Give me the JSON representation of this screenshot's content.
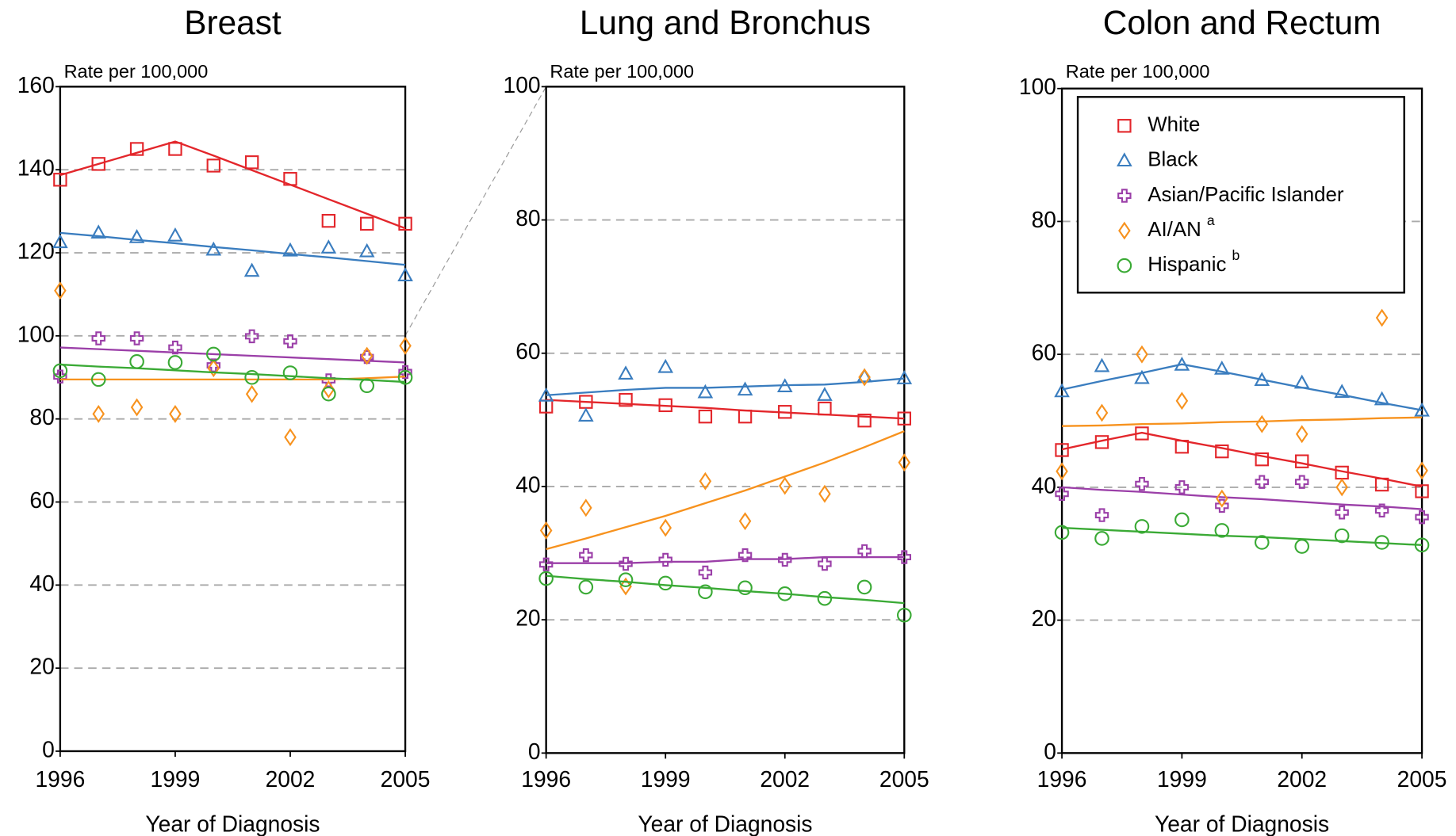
{
  "chart_data": [
    {
      "type": "line",
      "title": "Breast",
      "ylabel": "Rate per 100,000",
      "xlabel": "Year of Diagnosis",
      "x": [
        1996,
        1997,
        1998,
        1999,
        2000,
        2001,
        2002,
        2003,
        2004,
        2005
      ],
      "xlim": [
        1996,
        2005
      ],
      "xticks": [
        1996,
        1999,
        2002,
        2005
      ],
      "ylim": [
        0,
        160
      ],
      "yticks": [
        0,
        20,
        40,
        60,
        80,
        100,
        120,
        140,
        160
      ],
      "grid": true,
      "series": [
        {
          "color": "#e3262b",
          "marker": "square",
          "values": [
            137.6,
            141.4,
            145,
            145,
            141,
            141.8,
            137.8,
            127.7,
            127,
            127
          ],
          "fitted": [
            138.7,
            141.4,
            144.1,
            146.8,
            143.4,
            139.9,
            136.4,
            132.9,
            129.4,
            125.9
          ]
        },
        {
          "color": "#3a7dbf",
          "marker": "triangle",
          "values": [
            122.5,
            124.8,
            123.7,
            124.1,
            120.7,
            115.6,
            120.5,
            121.2,
            120.3,
            114.5
          ],
          "fitted": [
            124.8,
            124,
            123.1,
            122.3,
            121.4,
            120.6,
            119.7,
            118.9,
            118,
            117.1
          ]
        },
        {
          "color": "#9b3fa8",
          "marker": "plus",
          "values": [
            90.2,
            99.4,
            99.4,
            97.2,
            92.9,
            99.9,
            98.7,
            89.3,
            94.9,
            91.3
          ],
          "fitted": [
            97.2,
            96.8,
            96.4,
            96,
            95.6,
            95.2,
            94.8,
            94.4,
            94,
            93.6
          ]
        },
        {
          "color": "#f7921e",
          "marker": "diamond",
          "values": [
            110.9,
            81.2,
            82.8,
            81.2,
            92.2,
            86,
            75.6,
            87.1,
            95.2,
            97.6
          ],
          "fitted": [
            89.5,
            89.5,
            89.5,
            89.5,
            89.5,
            89.5,
            89.5,
            89.5,
            89.8,
            90.2
          ]
        },
        {
          "color": "#3aaa35",
          "marker": "circle",
          "values": [
            91.6,
            89.5,
            93.8,
            93.6,
            95.6,
            90,
            91.1,
            86,
            88,
            90
          ],
          "fitted": [
            93.1,
            92.6,
            92.2,
            91.7,
            91.2,
            90.8,
            90.3,
            89.8,
            89.4,
            88.9
          ]
        }
      ]
    },
    {
      "type": "line",
      "title": "Lung and Bronchus",
      "ylabel": "Rate per 100,000",
      "xlabel": "Year of Diagnosis",
      "x": [
        1996,
        1997,
        1998,
        1999,
        2000,
        2001,
        2002,
        2003,
        2004,
        2005
      ],
      "xlim": [
        1996,
        2005
      ],
      "xticks": [
        1996,
        1999,
        2002,
        2005
      ],
      "ylim": [
        0,
        100
      ],
      "yticks": [
        0,
        20,
        40,
        60,
        80,
        100
      ],
      "grid": true,
      "series": [
        {
          "color": "#e3262b",
          "marker": "square",
          "values": [
            52,
            52.7,
            53,
            52.2,
            50.5,
            50.5,
            51.2,
            51.7,
            49.9,
            50.2
          ],
          "fitted": [
            53,
            52.7,
            52.4,
            52.1,
            51.8,
            51.4,
            51.1,
            50.8,
            50.5,
            50.2
          ]
        },
        {
          "color": "#3a7dbf",
          "marker": "triangle",
          "values": [
            53.6,
            50.6,
            56.9,
            57.9,
            54.1,
            54.5,
            55,
            53.7,
            56.5,
            56.2
          ],
          "fitted": [
            53.7,
            54.1,
            54.5,
            54.8,
            54.8,
            55,
            55.2,
            55.3,
            55.7,
            56.2
          ]
        },
        {
          "color": "#9b3fa8",
          "marker": "plus",
          "values": [
            28.3,
            29.7,
            28.4,
            29,
            27.1,
            29.7,
            29,
            28.4,
            30.3,
            29.4
          ],
          "fitted": [
            28.5,
            28.5,
            28.5,
            28.7,
            28.7,
            29.1,
            29.1,
            29.4,
            29.4,
            29.4
          ]
        },
        {
          "color": "#f7921e",
          "marker": "diamond",
          "values": [
            33.4,
            36.8,
            25,
            33.8,
            40.8,
            34.8,
            40.1,
            38.9,
            56.4,
            43.6
          ],
          "fitted": [
            30.6,
            32.2,
            33.9,
            35.6,
            37.5,
            39.4,
            41.5,
            43.6,
            45.9,
            48.3
          ]
        },
        {
          "color": "#3aaa35",
          "marker": "circle",
          "values": [
            26.2,
            24.9,
            26,
            25.5,
            24.2,
            24.8,
            23.9,
            23.2,
            24.9,
            20.7
          ],
          "fitted": [
            26.6,
            26.1,
            25.7,
            25.2,
            24.8,
            24.3,
            23.9,
            23.4,
            23,
            22.5
          ]
        }
      ]
    },
    {
      "type": "line",
      "title": "Colon and Rectum",
      "ylabel": "Rate per 100,000",
      "xlabel": "Year of Diagnosis",
      "x": [
        1996,
        1997,
        1998,
        1999,
        2000,
        2001,
        2002,
        2003,
        2004,
        2005
      ],
      "xlim": [
        1996,
        2005
      ],
      "xticks": [
        1996,
        1999,
        2002,
        2005
      ],
      "ylim": [
        0,
        100
      ],
      "yticks": [
        0,
        20,
        40,
        60,
        80,
        100
      ],
      "grid": true,
      "legend": "upper right",
      "series": [
        {
          "name": "White",
          "color": "#e3262b",
          "marker": "square",
          "values": [
            45.6,
            46.8,
            48.1,
            46.1,
            45.4,
            44.2,
            43.9,
            42.2,
            40.4,
            39.4
          ],
          "fitted": [
            45.7,
            47,
            48.2,
            47,
            45.9,
            44.7,
            43.6,
            42.4,
            41.3,
            40.1
          ]
        },
        {
          "name": "Black",
          "color": "#3a7dbf",
          "marker": "triangle",
          "values": [
            54.4,
            58.2,
            56.4,
            58.4,
            57.8,
            56.1,
            55.7,
            54.3,
            53.2,
            51.5
          ],
          "fitted": [
            54.7,
            56,
            57.2,
            58.5,
            57.4,
            56.2,
            55,
            53.9,
            52.7,
            51.6
          ]
        },
        {
          "name": "Asian/Pacific Islander",
          "color": "#9b3fa8",
          "marker": "plus",
          "values": [
            39,
            35.8,
            40.5,
            40,
            37.2,
            40.8,
            40.8,
            36.2,
            36.5,
            35.5
          ],
          "fitted": [
            40,
            39.6,
            39.3,
            38.9,
            38.5,
            38.2,
            37.8,
            37.4,
            37.1,
            36.7
          ]
        },
        {
          "name": "AI/AN",
          "note": "a",
          "color": "#f7921e",
          "marker": "diamond",
          "values": [
            42.4,
            51.2,
            60,
            53,
            38.3,
            49.5,
            48,
            40,
            65.5,
            42.5
          ],
          "fitted": [
            49.2,
            49.3,
            49.5,
            49.6,
            49.8,
            49.9,
            50.1,
            50.2,
            50.4,
            50.5
          ]
        },
        {
          "name": "Hispanic",
          "note": "b",
          "color": "#3aaa35",
          "marker": "circle",
          "values": [
            33.2,
            32.3,
            34.1,
            35.1,
            33.5,
            31.7,
            31.1,
            32.7,
            31.7,
            31.3
          ],
          "fitted": [
            33.9,
            33.6,
            33.3,
            33,
            32.7,
            32.5,
            32.2,
            31.9,
            31.6,
            31.3
          ]
        }
      ]
    }
  ]
}
